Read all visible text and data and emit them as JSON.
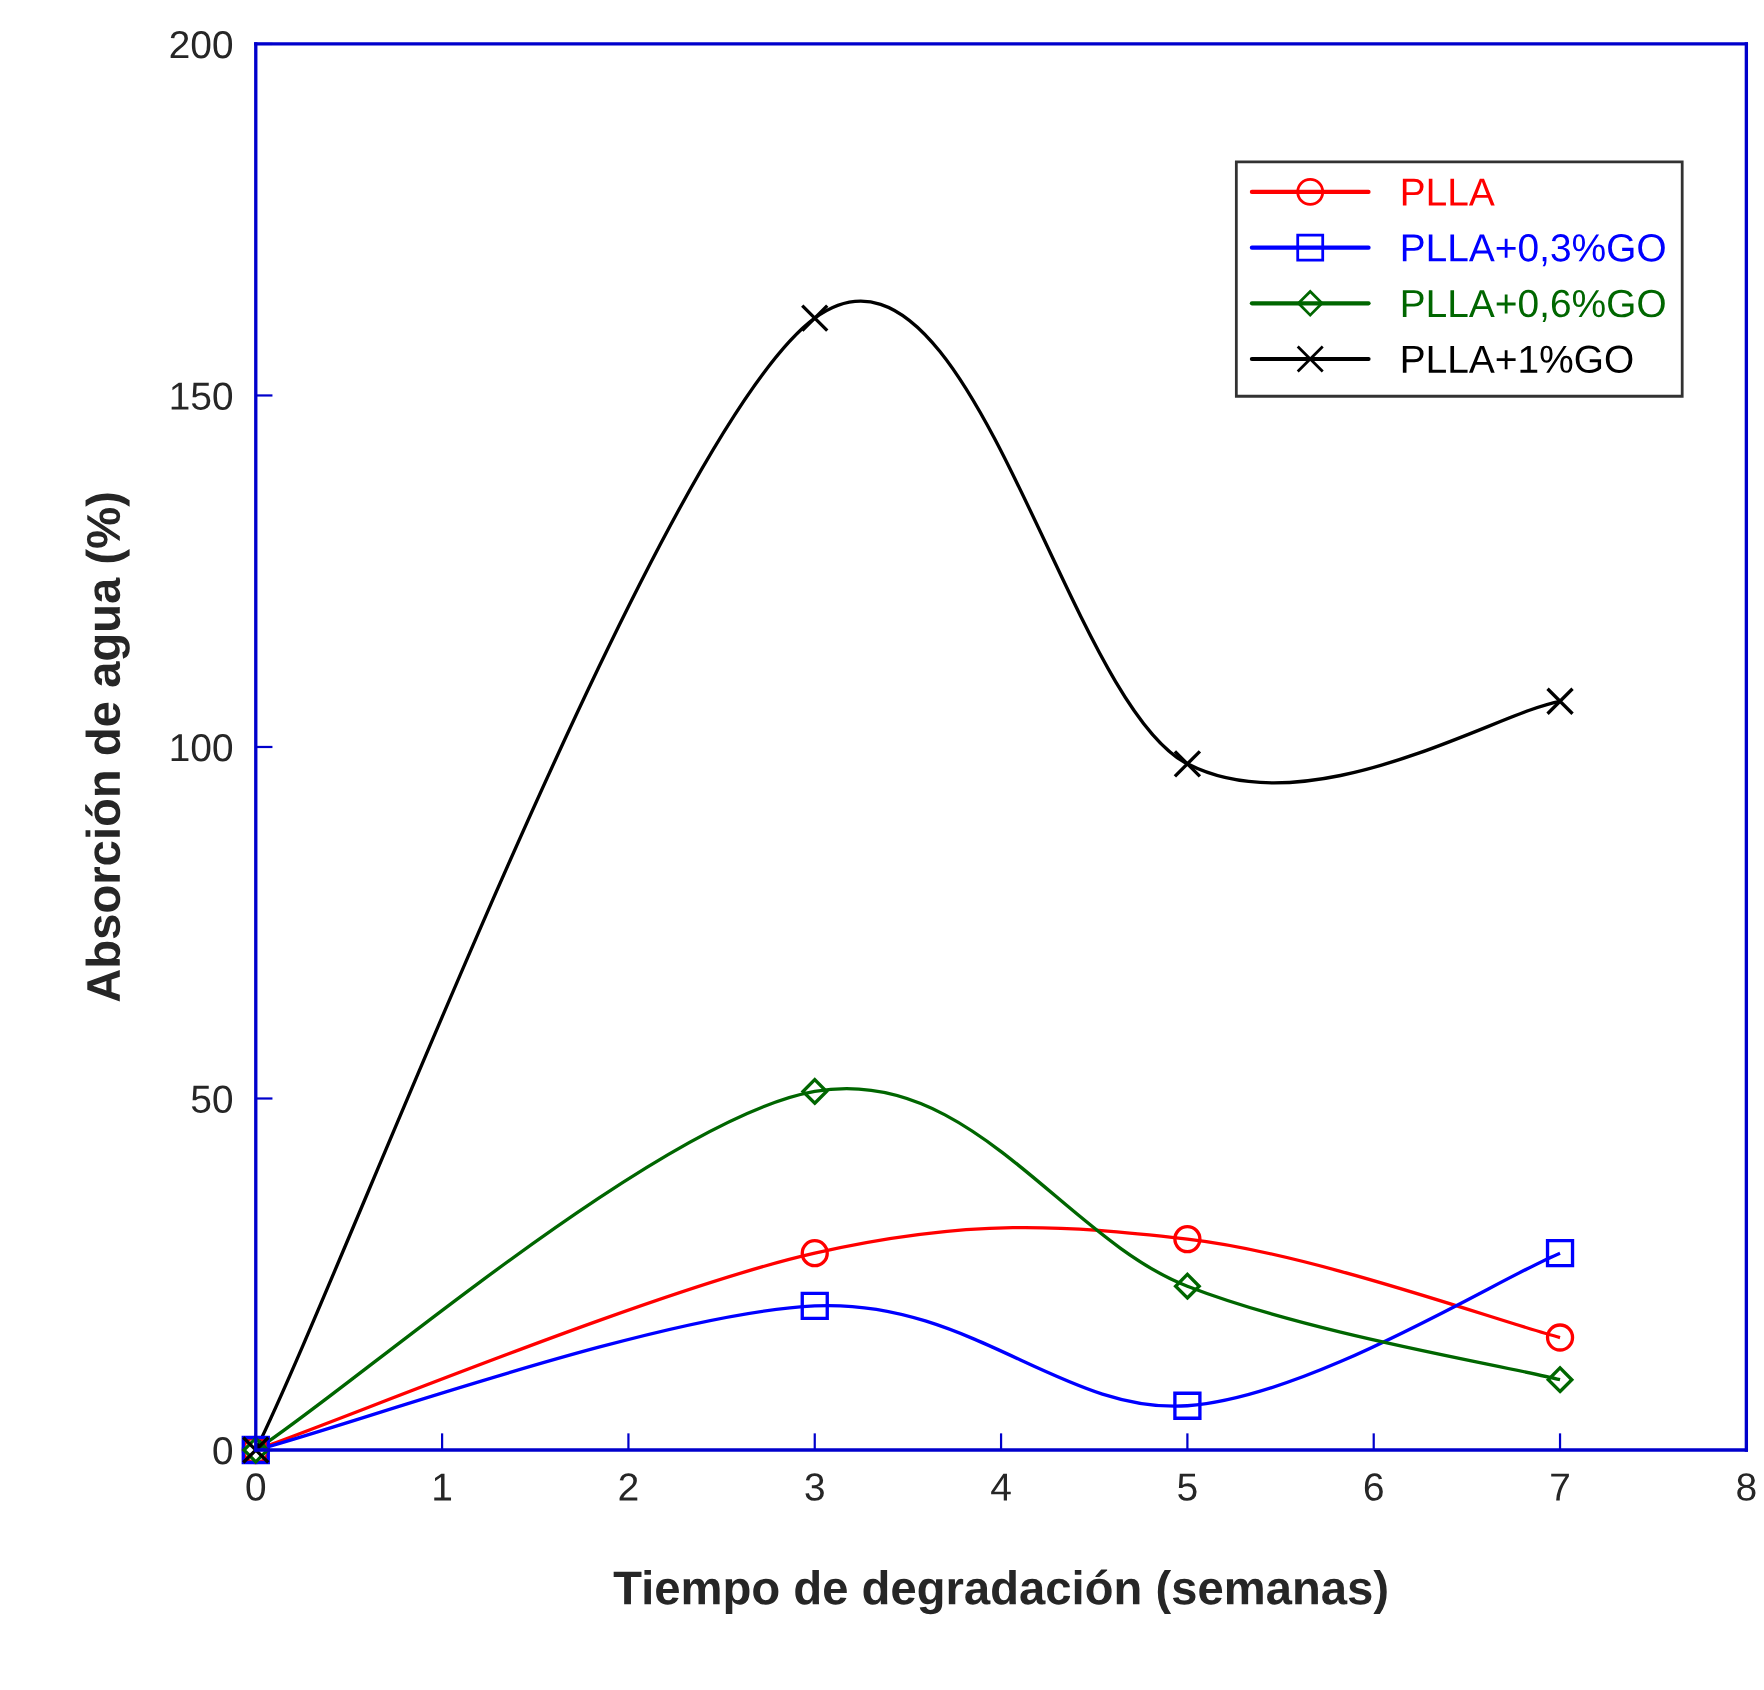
{
  "chart_data": {
    "type": "line",
    "xlabel": "Tiempo de degradación (semanas)",
    "ylabel": "Absorción de agua (%)",
    "x": [
      0,
      3,
      5,
      7
    ],
    "xlim": [
      0,
      8
    ],
    "xticks": [
      0,
      1,
      2,
      3,
      4,
      5,
      6,
      7,
      8
    ],
    "ylim": [
      0,
      200
    ],
    "yticks": [
      0,
      50,
      100,
      150,
      200
    ],
    "grid": false,
    "legend": "top right",
    "line_style": "solid",
    "series": [
      {
        "name": "PLLA",
        "color": "#ff0000",
        "marker": "circle",
        "values": [
          0,
          28,
          30,
          16
        ]
      },
      {
        "name": "PLLA+0,3%GO",
        "color": "#0000ff",
        "marker": "square",
        "values": [
          0,
          20.5,
          6.3,
          28
        ]
      },
      {
        "name": "PLLA+0,6%GO",
        "color": "#006600",
        "marker": "diamond",
        "values": [
          0,
          51,
          23.3,
          10
        ]
      },
      {
        "name": "PLLA+1%GO",
        "color": "#000000",
        "marker": "cross",
        "values": [
          0,
          161,
          97.6,
          106.5
        ]
      }
    ]
  }
}
